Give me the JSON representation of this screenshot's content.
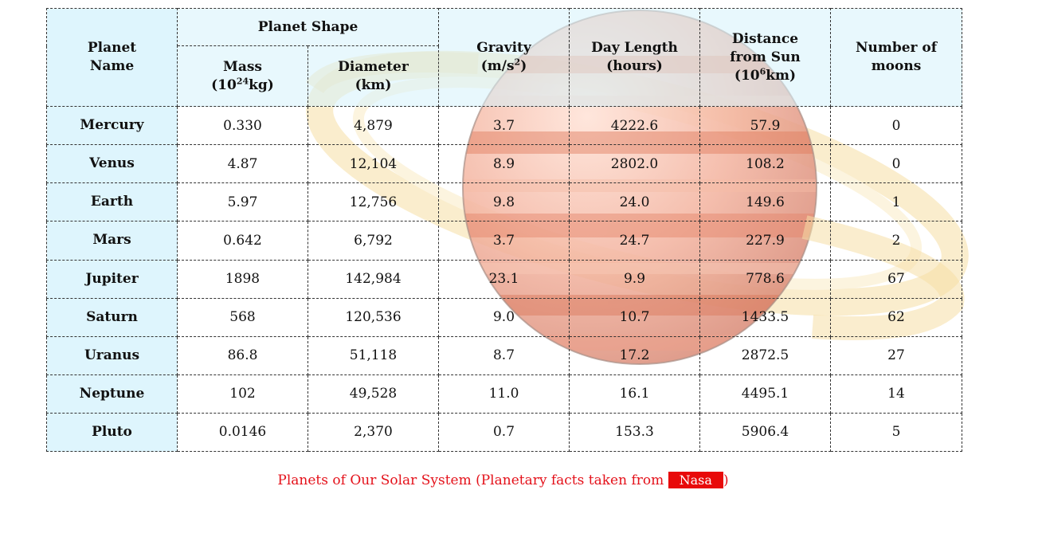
{
  "header": {
    "planet_name": [
      "Planet",
      "Name"
    ],
    "planet_shape": "Planet Shape",
    "mass": [
      "Mass",
      "(10",
      "24",
      "kg)"
    ],
    "diameter": [
      "Diameter",
      "(km)"
    ],
    "gravity": [
      "Gravity",
      "(m/s",
      "2",
      ")"
    ],
    "day_length": [
      "Day Length",
      "(hours)"
    ],
    "distance": [
      "Distance",
      "from Sun",
      "(10",
      "6",
      "km)"
    ],
    "moons": [
      "Number of",
      "moons"
    ]
  },
  "rows": [
    {
      "name": "Mercury",
      "mass": "0.330",
      "diameter": "4,879",
      "gravity": "3.7",
      "day": "4222.6",
      "distance": "57.9",
      "moons": "0"
    },
    {
      "name": "Venus",
      "mass": "4.87",
      "diameter": "12,104",
      "gravity": "8.9",
      "day": "2802.0",
      "distance": "108.2",
      "moons": "0"
    },
    {
      "name": "Earth",
      "mass": "5.97",
      "diameter": "12,756",
      "gravity": "9.8",
      "day": "24.0",
      "distance": "149.6",
      "moons": "1"
    },
    {
      "name": "Mars",
      "mass": "0.642",
      "diameter": "6,792",
      "gravity": "3.7",
      "day": "24.7",
      "distance": "227.9",
      "moons": "2"
    },
    {
      "name": "Jupiter",
      "mass": "1898",
      "diameter": "142,984",
      "gravity": "23.1",
      "day": "9.9",
      "distance": "778.6",
      "moons": "67"
    },
    {
      "name": "Saturn",
      "mass": "568",
      "diameter": "120,536",
      "gravity": "9.0",
      "day": "10.7",
      "distance": "1433.5",
      "moons": "62"
    },
    {
      "name": "Uranus",
      "mass": "86.8",
      "diameter": "51,118",
      "gravity": "8.7",
      "day": "17.2",
      "distance": "2872.5",
      "moons": "27"
    },
    {
      "name": "Neptune",
      "mass": "102",
      "diameter": "49,528",
      "gravity": "11.0",
      "day": "16.1",
      "distance": "4495.1",
      "moons": "14"
    },
    {
      "name": "Pluto",
      "mass": "0.0146",
      "diameter": "2,370",
      "gravity": "0.7",
      "day": "153.3",
      "distance": "5906.4",
      "moons": "5"
    }
  ],
  "caption": {
    "text": "Planets of Our Solar System (Planetary facts taken from ",
    "link": "Nasa",
    "close": ")"
  },
  "colors": {
    "header_bg": "#d6f2fc",
    "caption": "#e4111a",
    "link_bg": "#e80a0a"
  },
  "icons": {
    "background": "ringed-planet-icon"
  }
}
